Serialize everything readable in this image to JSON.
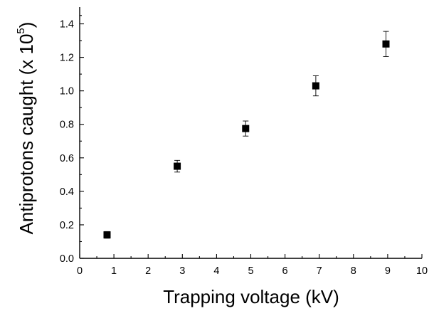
{
  "chart_data": {
    "type": "scatter",
    "xlabel": "Trapping voltage (kV)",
    "ylabel": {
      "main": "Antiprotons caught (x 10",
      "superscript": "5",
      "close": ")"
    },
    "xlim": [
      0,
      10
    ],
    "ylim": [
      0,
      1.5
    ],
    "x_ticks": [
      0,
      1,
      2,
      3,
      4,
      5,
      6,
      7,
      8,
      9,
      10
    ],
    "x_tick_labels": [
      "0",
      "1",
      "2",
      "3",
      "4",
      "5",
      "6",
      "7",
      "8",
      "9",
      "10"
    ],
    "y_ticks": [
      0.0,
      0.2,
      0.4,
      0.6,
      0.8,
      1.0,
      1.2,
      1.4
    ],
    "y_tick_labels": [
      "0.0",
      "0.2",
      "0.4",
      "0.6",
      "0.8",
      "1.0",
      "1.2",
      "1.4"
    ],
    "grid": false,
    "marker": "filled-square",
    "points": [
      {
        "x": 0.8,
        "y": 0.14,
        "err": 0.02
      },
      {
        "x": 2.85,
        "y": 0.55,
        "err": 0.035
      },
      {
        "x": 4.85,
        "y": 0.775,
        "err": 0.045
      },
      {
        "x": 6.9,
        "y": 1.03,
        "err": 0.06
      },
      {
        "x": 8.95,
        "y": 1.28,
        "err": 0.075
      }
    ]
  }
}
